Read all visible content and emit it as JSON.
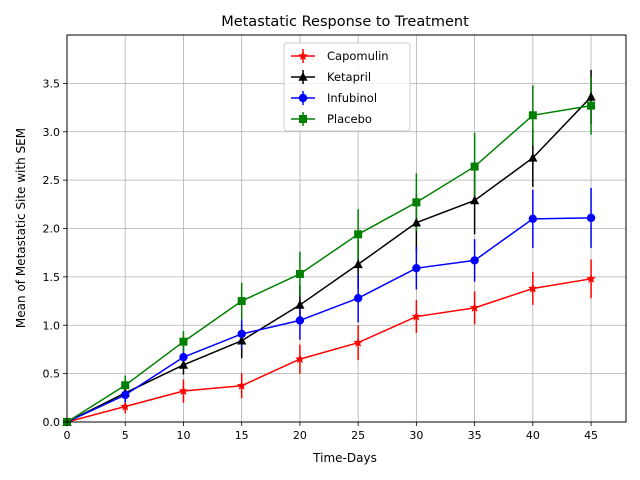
{
  "chart_data": {
    "type": "line",
    "title": "Metastatic Response to Treatment",
    "xlabel": "Time-Days",
    "ylabel": "Mean of Metastatic Site with SEM",
    "xlim": [
      0,
      48
    ],
    "ylim": [
      0,
      4.0
    ],
    "xticks": [
      0,
      5,
      10,
      15,
      20,
      25,
      30,
      35,
      40,
      45
    ],
    "yticks": [
      0.0,
      0.5,
      1.0,
      1.5,
      2.0,
      2.5,
      3.0,
      3.5
    ],
    "ytick_labels": [
      "0.0",
      "0.5",
      "1.0",
      "1.5",
      "2.0",
      "2.5",
      "3.0",
      "3.5"
    ],
    "grid": true,
    "legend_position": "top-center",
    "x": [
      0,
      5,
      10,
      15,
      20,
      25,
      30,
      35,
      40,
      45
    ],
    "series": [
      {
        "name": "Capomulin",
        "color": "#ff0000",
        "marker": "star",
        "values": [
          0.0,
          0.16,
          0.32,
          0.375,
          0.65,
          0.82,
          1.09,
          1.18,
          1.38,
          1.48
        ],
        "errors": [
          0.0,
          0.07,
          0.12,
          0.13,
          0.15,
          0.18,
          0.17,
          0.17,
          0.17,
          0.2
        ]
      },
      {
        "name": "Ketapril",
        "color": "#000000",
        "marker": "triangle",
        "values": [
          0.0,
          0.3,
          0.59,
          0.84,
          1.21,
          1.63,
          2.06,
          2.29,
          2.73,
          3.36
        ],
        "errors": [
          0.0,
          0.1,
          0.1,
          0.18,
          0.2,
          0.25,
          0.3,
          0.35,
          0.3,
          0.28
        ]
      },
      {
        "name": "Infubinol",
        "color": "#0000ff",
        "marker": "circle",
        "values": [
          0.0,
          0.28,
          0.67,
          0.91,
          1.05,
          1.28,
          1.59,
          1.67,
          2.1,
          2.11
        ],
        "errors": [
          0.0,
          0.08,
          0.1,
          0.15,
          0.2,
          0.25,
          0.22,
          0.22,
          0.3,
          0.31
        ]
      },
      {
        "name": "Placebo",
        "color": "#008000",
        "marker": "square",
        "values": [
          0.0,
          0.38,
          0.83,
          1.25,
          1.53,
          1.94,
          2.27,
          2.64,
          3.17,
          3.27
        ],
        "errors": [
          0.0,
          0.1,
          0.11,
          0.19,
          0.23,
          0.26,
          0.3,
          0.35,
          0.31,
          0.3
        ]
      }
    ]
  }
}
